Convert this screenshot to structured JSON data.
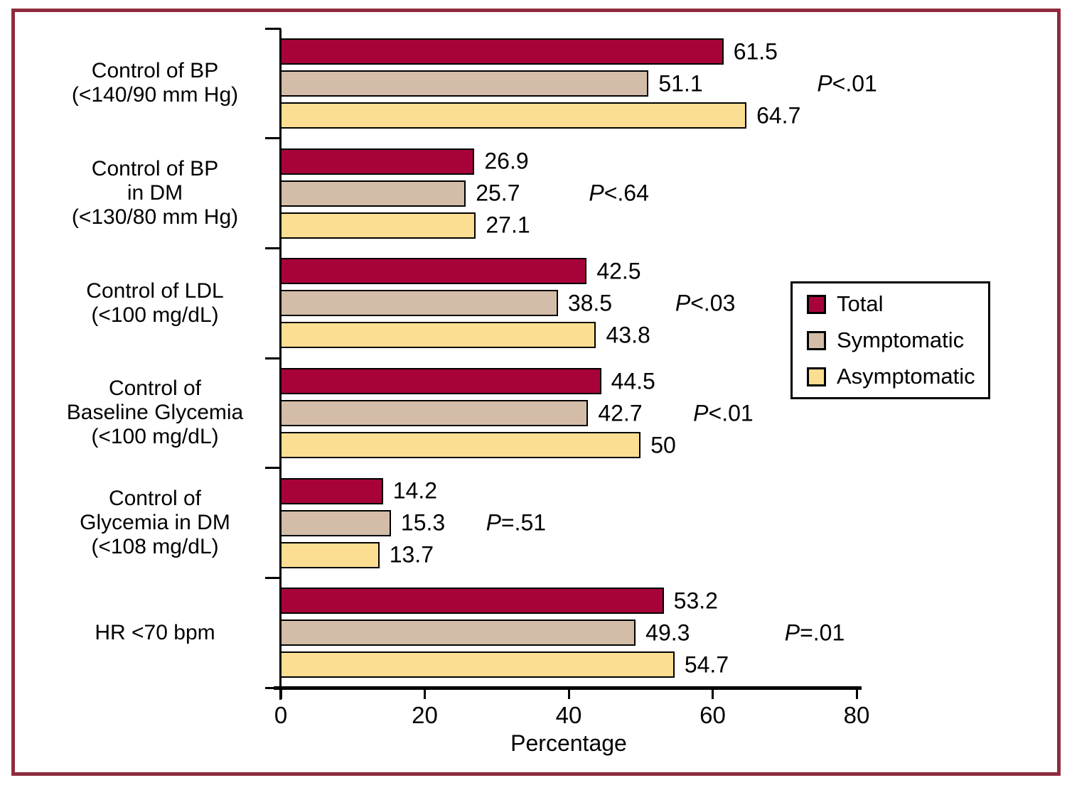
{
  "chart_data": {
    "type": "bar",
    "orientation": "horizontal",
    "title": "",
    "xlabel": "Percentage",
    "xlim": [
      0,
      80
    ],
    "x_ticks": [
      "0",
      "20",
      "40",
      "60",
      "80"
    ],
    "grid": false,
    "legend_position": "right-middle",
    "series": [
      {
        "name": "Total",
        "color": "#A80339",
        "values": [
          61.5,
          26.9,
          42.5,
          44.5,
          14.2,
          53.2
        ]
      },
      {
        "name": "Symptomatic",
        "color": "#D3BCA8",
        "values": [
          51.1,
          25.7,
          38.5,
          42.7,
          15.3,
          49.3
        ]
      },
      {
        "name": "Asymptomatic",
        "color": "#FBDE91",
        "values": [
          64.7,
          27.1,
          43.8,
          50,
          13.7,
          54.7
        ]
      }
    ],
    "groups": [
      {
        "label_lines": [
          "Control of BP",
          "(<140/90 mm Hg)"
        ],
        "values": [
          61.5,
          51.1,
          64.7
        ],
        "value_labels": [
          "61.5",
          "51.1",
          "64.7"
        ],
        "p_italic": "P",
        "p_rest": "<.01",
        "p_x_units": 74.5
      },
      {
        "label_lines": [
          "Control of BP",
          "in DM",
          "(<130/80 mm Hg)"
        ],
        "values": [
          26.9,
          25.7,
          27.1
        ],
        "value_labels": [
          "26.9",
          "25.7",
          "27.1"
        ],
        "p_italic": "P",
        "p_rest": "<.64",
        "p_x_units": 42.8
      },
      {
        "label_lines": [
          "Control of LDL",
          "(<100 mg/dL)"
        ],
        "values": [
          42.5,
          38.5,
          43.8
        ],
        "value_labels": [
          "42.5",
          "38.5",
          "43.8"
        ],
        "p_italic": "P",
        "p_rest": "<.03",
        "p_x_units": 54.8
      },
      {
        "label_lines": [
          "Control of",
          "Baseline Glycemia",
          "(<100 mg/dL)"
        ],
        "values": [
          44.5,
          42.7,
          50
        ],
        "value_labels": [
          "44.5",
          "42.7",
          "50"
        ],
        "p_italic": "P",
        "p_rest": "<.01",
        "p_x_units": 57.3
      },
      {
        "label_lines": [
          "Control of",
          "Glycemia in DM",
          "(<108 mg/dL)"
        ],
        "values": [
          14.2,
          15.3,
          13.7
        ],
        "value_labels": [
          "14.2",
          "15.3",
          "13.7"
        ],
        "p_italic": "P",
        "p_rest": "=.51",
        "p_x_units": 28.5
      },
      {
        "label_lines": [
          "HR <70 bpm"
        ],
        "values": [
          53.2,
          49.3,
          54.7
        ],
        "value_labels": [
          "53.2",
          "49.3",
          "54.7"
        ],
        "p_italic": "P",
        "p_rest": "=.01",
        "p_x_units": 70.0
      }
    ],
    "colors": {
      "total": "#A80339",
      "symptomatic": "#D3BCA8",
      "asymptomatic": "#FBDE91",
      "frame": "#8E2C3E",
      "axis": "#000000"
    }
  }
}
